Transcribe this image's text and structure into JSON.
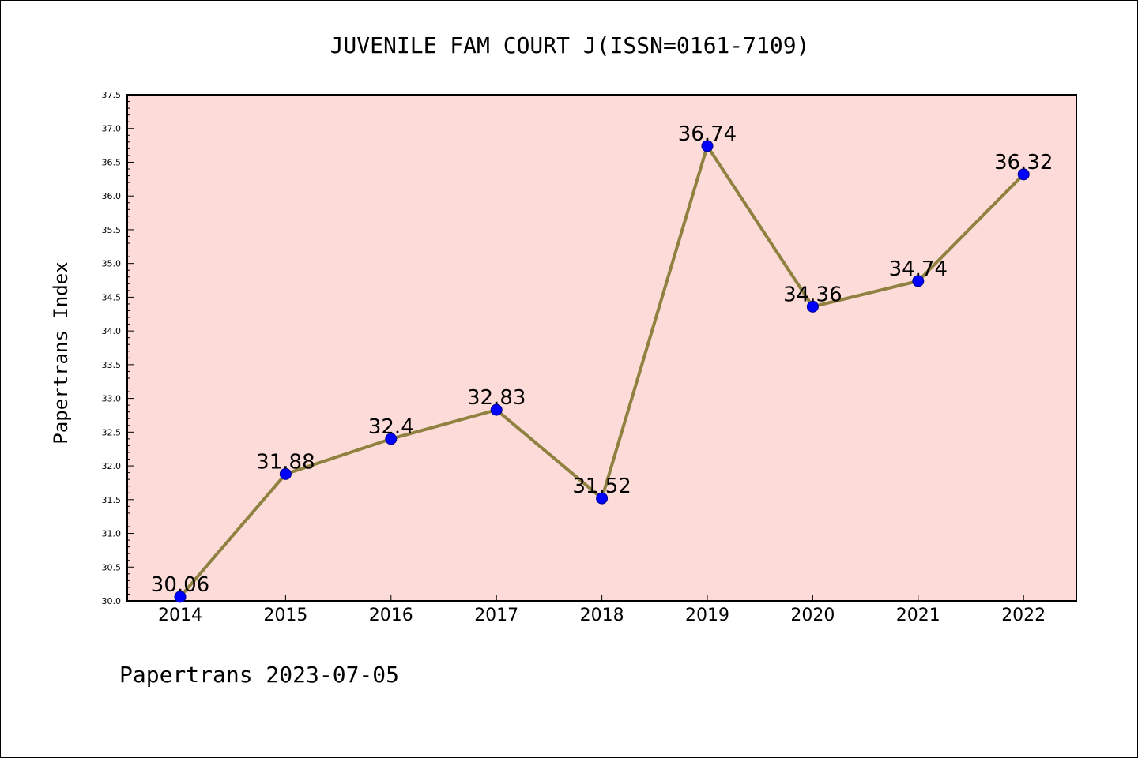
{
  "colors": {
    "plot_background": "#fddbd8",
    "line": "#8f8140",
    "marker": "#0000ff",
    "marker_edge": "#00008b",
    "axis": "#000000"
  },
  "chart_data": {
    "type": "line",
    "title": "JUVENILE FAM COURT J(ISSN=0161-7109)",
    "xlabel": "",
    "ylabel": "Papertrans Index",
    "footer": "Papertrans 2023-07-05",
    "categories": [
      "2014",
      "2015",
      "2016",
      "2017",
      "2018",
      "2019",
      "2020",
      "2021",
      "2022"
    ],
    "series": [
      {
        "values": [
          30.06,
          31.88,
          32.4,
          32.83,
          31.52,
          36.74,
          34.36,
          34.74,
          36.32
        ],
        "labels": [
          "30.06",
          "31.88",
          "32.4",
          "32.83",
          "31.52",
          "36.74",
          "34.36",
          "34.74",
          "36.32"
        ]
      }
    ],
    "ylim": [
      30.0,
      37.5
    ],
    "yticks": [
      "30.0",
      "30.5",
      "31.0",
      "31.5",
      "32.0",
      "32.5",
      "33.0",
      "33.5",
      "34.0",
      "34.5",
      "35.0",
      "35.5",
      "36.0",
      "36.5",
      "37.0",
      "37.5"
    ],
    "grid": false,
    "legend": "none"
  }
}
